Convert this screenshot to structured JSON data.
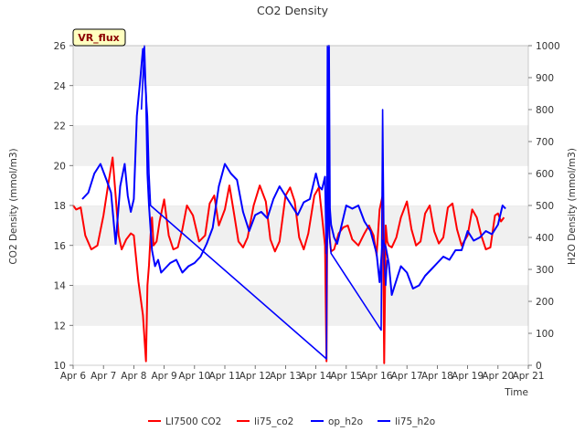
{
  "chart_data": {
    "type": "line",
    "title": "CO2 Density",
    "xlabel": "Time",
    "ylabel_left": "CO2 Density (mmol/m3)",
    "ylabel_right": "H2O Density (mmol/m3)",
    "badge": "VR_flux",
    "xlim": [
      6,
      21
    ],
    "ylim_left": [
      10,
      26
    ],
    "ylim_right": [
      0,
      1000
    ],
    "x_ticks": [
      {
        "value": 6,
        "label": "Apr 6"
      },
      {
        "value": 7,
        "label": "Apr 7"
      },
      {
        "value": 8,
        "label": "Apr 8"
      },
      {
        "value": 9,
        "label": "Apr 9"
      },
      {
        "value": 10,
        "label": "Apr 10"
      },
      {
        "value": 11,
        "label": "Apr 11"
      },
      {
        "value": 12,
        "label": "Apr 12"
      },
      {
        "value": 13,
        "label": "Apr 13"
      },
      {
        "value": 14,
        "label": "Apr 14"
      },
      {
        "value": 15,
        "label": "Apr 15"
      },
      {
        "value": 16,
        "label": "Apr 16"
      },
      {
        "value": 17,
        "label": "Apr 17"
      },
      {
        "value": 18,
        "label": "Apr 18"
      },
      {
        "value": 19,
        "label": "Apr 19"
      },
      {
        "value": 20,
        "label": "Apr 20"
      },
      {
        "value": 21,
        "label": "Apr 21"
      }
    ],
    "y_ticks_left": [
      10,
      12,
      14,
      16,
      18,
      20,
      22,
      24,
      26
    ],
    "y_ticks_right": [
      0,
      100,
      200,
      300,
      400,
      500,
      600,
      700,
      800,
      900,
      1000
    ],
    "grid": "horizontal bands",
    "legend_position": "bottom",
    "series": [
      {
        "name": "LI7500 CO2",
        "axis": "left",
        "color": "#ff0000",
        "x": [],
        "y": []
      },
      {
        "name": "li75_co2",
        "axis": "left",
        "color": "#ff0000",
        "x": [
          6.0,
          6.1,
          6.25,
          6.4,
          6.6,
          6.8,
          7.0,
          7.15,
          7.3,
          7.4,
          7.5,
          7.6,
          7.75,
          7.9,
          8.0,
          8.15,
          8.3,
          8.4,
          8.45,
          8.5,
          8.55,
          8.6,
          8.65,
          8.75,
          8.85,
          9.0,
          9.15,
          9.3,
          9.45,
          9.6,
          9.75,
          9.95,
          10.15,
          10.35,
          10.5,
          10.65,
          10.8,
          11.0,
          11.15,
          11.3,
          11.45,
          11.6,
          11.75,
          11.95,
          12.15,
          12.35,
          12.5,
          12.65,
          12.8,
          13.0,
          13.15,
          13.3,
          13.45,
          13.6,
          13.75,
          13.95,
          14.1,
          14.2,
          14.3,
          14.35,
          14.4,
          14.42,
          14.45,
          14.5,
          14.6,
          14.75,
          14.9,
          15.05,
          15.2,
          15.4,
          15.6,
          15.75,
          15.9,
          16.0,
          16.1,
          16.2,
          16.25,
          16.3,
          16.33,
          16.35,
          16.4,
          16.5,
          16.65,
          16.8,
          17.0,
          17.15,
          17.3,
          17.45,
          17.6,
          17.75,
          17.9,
          18.05,
          18.2,
          18.35,
          18.5,
          18.65,
          18.8,
          19.0,
          19.15,
          19.3,
          19.45,
          19.6,
          19.75,
          19.9,
          20.0,
          20.1,
          20.2
        ],
        "y": [
          18.0,
          17.8,
          17.9,
          16.5,
          15.8,
          16.0,
          17.5,
          19.0,
          20.4,
          18.5,
          16.5,
          15.8,
          16.3,
          16.6,
          16.5,
          14.2,
          12.5,
          10.2,
          14.0,
          15.0,
          16.5,
          17.4,
          16.0,
          16.2,
          17.2,
          18.3,
          16.5,
          15.8,
          15.9,
          16.8,
          18.0,
          17.5,
          16.2,
          16.5,
          18.1,
          18.5,
          17.0,
          17.8,
          19.0,
          17.6,
          16.2,
          15.9,
          16.4,
          18.0,
          19.0,
          18.2,
          16.3,
          15.7,
          16.2,
          18.5,
          18.9,
          18.2,
          16.4,
          15.8,
          16.6,
          18.5,
          18.9,
          17.5,
          16.0,
          10.2,
          24.0,
          18.2,
          16.5,
          15.7,
          15.8,
          16.6,
          16.9,
          17.0,
          16.3,
          16.0,
          16.6,
          17.0,
          16.5,
          15.5,
          17.8,
          18.5,
          10.1,
          17.0,
          16.5,
          16.2,
          16.0,
          15.9,
          16.4,
          17.4,
          18.2,
          16.8,
          16.0,
          16.2,
          17.6,
          18.0,
          16.7,
          16.1,
          16.4,
          17.9,
          18.1,
          16.8,
          16.0,
          16.5,
          17.8,
          17.4,
          16.5,
          15.8,
          15.9,
          17.5,
          17.6,
          17.2,
          17.4
        ]
      },
      {
        "name": "op_h2o",
        "axis": "right",
        "color": "#0000ff",
        "x": [
          6.3,
          6.5,
          6.7,
          6.9,
          7.1,
          7.25,
          7.4,
          7.55,
          7.7,
          7.8,
          7.9,
          8.0,
          8.1,
          8.2,
          8.3,
          8.4,
          8.45,
          8.5,
          8.6,
          8.7,
          8.8,
          8.9,
          9.0,
          9.2,
          9.4,
          9.6,
          9.8,
          10.0,
          10.2,
          10.4,
          10.6,
          10.8,
          11.0,
          11.2,
          11.4,
          11.6,
          11.8,
          12.0,
          12.2,
          12.4,
          12.6,
          12.8,
          13.0,
          13.2,
          13.4,
          13.6,
          13.8,
          14.0,
          14.1,
          14.2,
          14.3,
          14.35,
          14.4,
          14.43,
          14.46,
          14.5,
          14.6,
          14.7,
          14.8,
          15.0,
          15.2,
          15.4,
          15.6,
          15.8,
          16.0,
          16.1,
          16.2,
          16.3,
          16.4,
          16.5,
          16.6,
          16.7,
          16.8,
          17.0,
          17.2,
          17.4,
          17.6,
          17.8,
          18.0,
          18.2,
          18.4,
          18.6,
          18.8,
          19.0,
          19.2,
          19.4,
          19.6,
          19.8,
          20.0,
          20.15,
          20.25
        ],
        "y": [
          520,
          540,
          600,
          630,
          580,
          540,
          380,
          560,
          630,
          530,
          480,
          520,
          780,
          880,
          990,
          850,
          600,
          500,
          360,
          310,
          330,
          290,
          300,
          320,
          330,
          290,
          310,
          320,
          340,
          380,
          430,
          560,
          630,
          600,
          580,
          480,
          420,
          470,
          480,
          460,
          520,
          560,
          530,
          500,
          470,
          510,
          520,
          600,
          560,
          550,
          590,
          350,
          450,
          1000,
          490,
          440,
          400,
          380,
          420,
          500,
          490,
          500,
          450,
          420,
          350,
          260,
          390,
          370,
          320,
          220,
          250,
          280,
          310,
          290,
          240,
          250,
          280,
          300,
          320,
          340,
          330,
          360,
          360,
          420,
          390,
          400,
          420,
          410,
          440,
          500,
          490
        ]
      },
      {
        "name": "li75_h2o",
        "axis": "right",
        "color": "#0000ff",
        "x": [
          8.25,
          8.3,
          8.35,
          8.4,
          8.45,
          8.5,
          8.55,
          14.35,
          14.38,
          14.4,
          14.45,
          14.5,
          16.15,
          16.2,
          16.25,
          16.3,
          16.35
        ],
        "y": [
          800,
          900,
          1000,
          850,
          780,
          600,
          500,
          20,
          1000,
          800,
          400,
          350,
          110,
          800,
          320,
          250,
          330
        ]
      }
    ]
  }
}
